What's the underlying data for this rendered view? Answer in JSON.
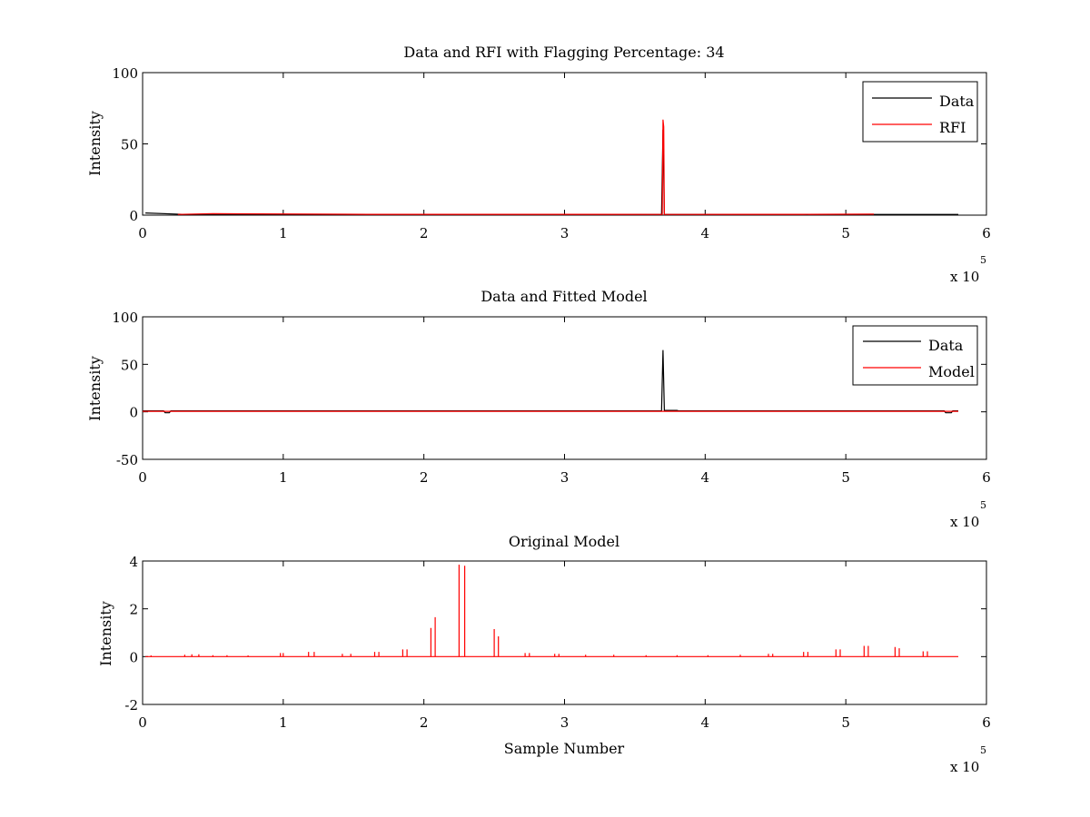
{
  "chart_data": [
    {
      "type": "line",
      "title": "Data and RFI with Flagging Percentage: 34",
      "xlabel": "",
      "ylabel": "Intensity",
      "xlim": [
        0,
        6
      ],
      "ylim": [
        0,
        100
      ],
      "xticks": [
        0,
        1,
        2,
        3,
        4,
        5,
        6
      ],
      "yticks": [
        0,
        50,
        100
      ],
      "x_multiplier": "x 10",
      "x_multiplier_exp": "5",
      "legend_position": "top-right",
      "series": [
        {
          "name": "Data",
          "color": "#000000",
          "x": [
            0.02,
            0.3,
            0.6,
            1.0,
            1.4,
            1.8,
            2.2,
            2.6,
            3.0,
            3.4,
            3.69,
            3.7,
            3.71,
            3.72,
            3.8,
            4.2,
            4.6,
            5.0,
            5.4,
            5.8
          ],
          "values": [
            1.5,
            0.5,
            0.5,
            0.5,
            0.5,
            0.5,
            0.5,
            0.5,
            0.5,
            0.5,
            0.5,
            60,
            0.6,
            0.5,
            0.5,
            0.5,
            0.5,
            0.5,
            0.5,
            0.5
          ]
        },
        {
          "name": "RFI",
          "color": "#ff0000",
          "x": [
            0.25,
            0.5,
            1.6,
            2.0,
            3.2,
            3.695,
            3.7,
            3.705,
            3.71,
            4.3,
            4.7,
            5.2
          ],
          "values": [
            0.5,
            1.0,
            0.6,
            0.6,
            0.6,
            0.5,
            67,
            62,
            0.5,
            0.6,
            0.6,
            0.7
          ]
        }
      ]
    },
    {
      "type": "line",
      "title": "Data and Fitted Model",
      "xlabel": "",
      "ylabel": "Intensity",
      "xlim": [
        0,
        6
      ],
      "ylim": [
        -50,
        100
      ],
      "xticks": [
        0,
        1,
        2,
        3,
        4,
        5,
        6
      ],
      "yticks": [
        -50,
        0,
        50,
        100
      ],
      "x_multiplier": "x 10",
      "x_multiplier_exp": "5",
      "legend_position": "top-right",
      "series": [
        {
          "name": "Data",
          "color": "#000000",
          "x": [
            0.0,
            0.15,
            0.16,
            0.19,
            0.2,
            3.69,
            3.7,
            3.71,
            3.8,
            3.81,
            5.7,
            5.71,
            5.75,
            5.76,
            5.8
          ],
          "values": [
            1,
            1,
            -1,
            -1,
            1,
            1,
            65,
            1.5,
            1.5,
            1,
            1,
            -1,
            -1,
            1,
            1
          ]
        },
        {
          "name": "Model",
          "color": "#ff0000",
          "x": [
            0.0,
            5.8
          ],
          "values": [
            0.5,
            0.5
          ]
        }
      ]
    },
    {
      "type": "line",
      "title": "Original Model",
      "xlabel": "Sample Number",
      "ylabel": "Intensity",
      "xlim": [
        0,
        6
      ],
      "ylim": [
        -2,
        4
      ],
      "xticks": [
        0,
        1,
        2,
        3,
        4,
        5,
        6
      ],
      "yticks": [
        -2,
        0,
        2,
        4
      ],
      "x_multiplier": "x 10",
      "x_multiplier_exp": "5",
      "legend_position": "none",
      "series": [
        {
          "name": "",
          "color": "#ff0000",
          "baseline": 0,
          "x_end": 5.8,
          "spikes": [
            [
              0.06,
              0.05
            ],
            [
              0.3,
              0.08
            ],
            [
              0.35,
              0.1
            ],
            [
              0.4,
              0.1
            ],
            [
              0.5,
              0.06
            ],
            [
              0.6,
              0.06
            ],
            [
              0.75,
              0.05
            ],
            [
              0.98,
              0.15
            ],
            [
              1.0,
              0.15
            ],
            [
              1.18,
              0.2
            ],
            [
              1.22,
              0.2
            ],
            [
              1.42,
              0.12
            ],
            [
              1.48,
              0.12
            ],
            [
              1.65,
              0.2
            ],
            [
              1.68,
              0.2
            ],
            [
              1.85,
              0.3
            ],
            [
              1.88,
              0.3
            ],
            [
              2.05,
              1.2
            ],
            [
              2.08,
              1.65
            ],
            [
              2.25,
              3.85
            ],
            [
              2.29,
              3.8
            ],
            [
              2.5,
              1.15
            ],
            [
              2.53,
              0.85
            ],
            [
              2.72,
              0.15
            ],
            [
              2.75,
              0.15
            ],
            [
              2.93,
              0.12
            ],
            [
              2.96,
              0.12
            ],
            [
              3.15,
              0.08
            ],
            [
              3.35,
              0.08
            ],
            [
              3.58,
              0.06
            ],
            [
              3.8,
              0.06
            ],
            [
              4.02,
              0.06
            ],
            [
              4.25,
              0.08
            ],
            [
              4.45,
              0.12
            ],
            [
              4.48,
              0.12
            ],
            [
              4.7,
              0.2
            ],
            [
              4.73,
              0.2
            ],
            [
              4.93,
              0.3
            ],
            [
              4.96,
              0.3
            ],
            [
              5.13,
              0.45
            ],
            [
              5.16,
              0.45
            ],
            [
              5.35,
              0.4
            ],
            [
              5.38,
              0.35
            ],
            [
              5.55,
              0.22
            ],
            [
              5.58,
              0.22
            ]
          ]
        }
      ]
    }
  ]
}
